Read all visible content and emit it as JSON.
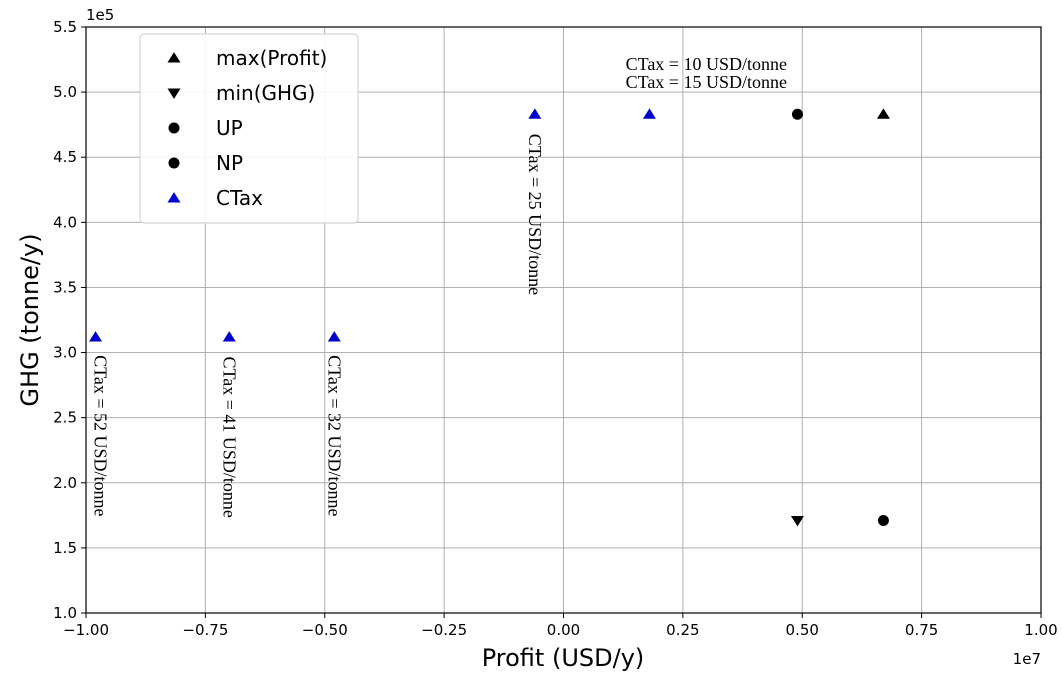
{
  "chart_data": {
    "type": "scatter",
    "title": "",
    "xlabel": "Profit (USD/y)",
    "ylabel": "GHG (tonne/y)",
    "x_scale_label": "1e7",
    "y_scale_label": "1e5",
    "xlim": [
      -1.0,
      1.0
    ],
    "ylim": [
      1.0,
      5.5
    ],
    "x_ticks": [
      -1.0,
      -0.75,
      -0.5,
      -0.25,
      0.0,
      0.25,
      0.5,
      0.75,
      1.0
    ],
    "x_tick_labels": [
      "−1.00",
      "−0.75",
      "−0.50",
      "−0.25",
      "0.00",
      "0.25",
      "0.50",
      "0.75",
      "1.00"
    ],
    "y_ticks": [
      1.0,
      1.5,
      2.0,
      2.5,
      3.0,
      3.5,
      4.0,
      4.5,
      5.0,
      5.5
    ],
    "y_tick_labels": [
      "1.0",
      "1.5",
      "2.0",
      "2.5",
      "3.0",
      "3.5",
      "4.0",
      "4.5",
      "5.0",
      "5.5"
    ],
    "grid": true,
    "legend_position": "top-left",
    "series": [
      {
        "name": "max(Profit)",
        "marker": "triangle-up",
        "color": "#000000",
        "points": [
          {
            "x": 0.67,
            "y": 4.83
          }
        ]
      },
      {
        "name": "min(GHG)",
        "marker": "triangle-down",
        "color": "#000000",
        "points": [
          {
            "x": 0.49,
            "y": 1.71
          }
        ]
      },
      {
        "name": "UP",
        "marker": "circle",
        "color": "#000000",
        "points": [
          {
            "x": 0.49,
            "y": 4.83
          }
        ]
      },
      {
        "name": "NP",
        "marker": "circle",
        "color": "#000000",
        "points": [
          {
            "x": 0.67,
            "y": 1.71
          }
        ]
      },
      {
        "name": "CTax",
        "marker": "triangle-up",
        "color": "#0000cc",
        "points": [
          {
            "x": -0.98,
            "y": 3.12
          },
          {
            "x": -0.7,
            "y": 3.12
          },
          {
            "x": -0.48,
            "y": 3.12
          },
          {
            "x": -0.06,
            "y": 4.83
          },
          {
            "x": 0.18,
            "y": 4.83
          }
        ]
      }
    ],
    "annotations": [
      {
        "text": "CTax = 10 USD/tonne",
        "x": 0.13,
        "y": 5.17,
        "rotation": 0
      },
      {
        "text": "CTax = 15 USD/tonne",
        "x": 0.13,
        "y": 5.03,
        "rotation": 0
      },
      {
        "text": "CTax = 25 USD/tonne",
        "x": -0.06,
        "y": 4.68,
        "rotation": 90
      },
      {
        "text": "CTax = 32 USD/tonne",
        "x": -0.48,
        "y": 2.98,
        "rotation": 90
      },
      {
        "text": "CTax = 41 USD/tonne",
        "x": -0.7,
        "y": 2.97,
        "rotation": 90
      },
      {
        "text": "CTax = 52 USD/tonne",
        "x": -0.97,
        "y": 2.98,
        "rotation": 90
      }
    ]
  }
}
